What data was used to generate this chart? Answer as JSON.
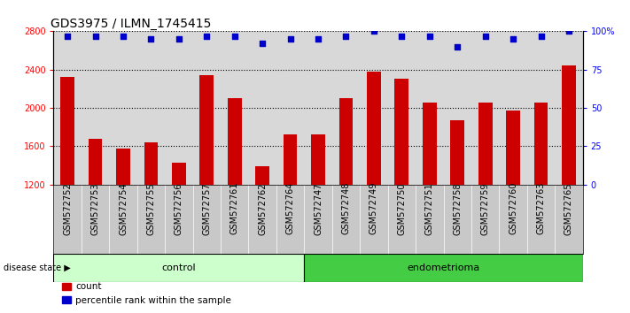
{
  "title": "GDS3975 / ILMN_1745415",
  "samples": [
    "GSM572752",
    "GSM572753",
    "GSM572754",
    "GSM572755",
    "GSM572756",
    "GSM572757",
    "GSM572761",
    "GSM572762",
    "GSM572764",
    "GSM572747",
    "GSM572748",
    "GSM572749",
    "GSM572750",
    "GSM572751",
    "GSM572758",
    "GSM572759",
    "GSM572760",
    "GSM572763",
    "GSM572765"
  ],
  "bar_values": [
    2320,
    1680,
    1580,
    1640,
    1430,
    2340,
    2100,
    1390,
    1720,
    1720,
    2100,
    2380,
    2310,
    2060,
    1870,
    2060,
    1970,
    2060,
    2440
  ],
  "percentile_values": [
    97,
    97,
    97,
    95,
    95,
    97,
    97,
    92,
    95,
    95,
    97,
    100,
    97,
    97,
    90,
    97,
    95,
    97,
    100
  ],
  "bar_color": "#cc0000",
  "dot_color": "#0000cc",
  "ylim_left": [
    1200,
    2800
  ],
  "ylim_right": [
    0,
    100
  ],
  "yticks_left": [
    1200,
    1600,
    2000,
    2400,
    2800
  ],
  "ytick_labels_left": [
    "1200",
    "1600",
    "2000",
    "2400",
    "2800"
  ],
  "yticks_right": [
    0,
    25,
    50,
    75,
    100
  ],
  "ytick_labels_right": [
    "0",
    "25",
    "50",
    "75",
    "100%"
  ],
  "control_count": 9,
  "endometrioma_count": 10,
  "control_label": "control",
  "endometrioma_label": "endometrioma",
  "disease_state_label": "disease state",
  "legend_count_label": "count",
  "legend_percentile_label": "percentile rank within the sample",
  "plot_bg": "#d8d8d8",
  "xtick_bg": "#c8c8c8",
  "control_bg": "#ccffcc",
  "endometrioma_bg": "#44cc44",
  "title_fontsize": 10,
  "tick_fontsize": 7,
  "label_fontsize": 8,
  "bar_width": 0.5,
  "dot_size": 20
}
